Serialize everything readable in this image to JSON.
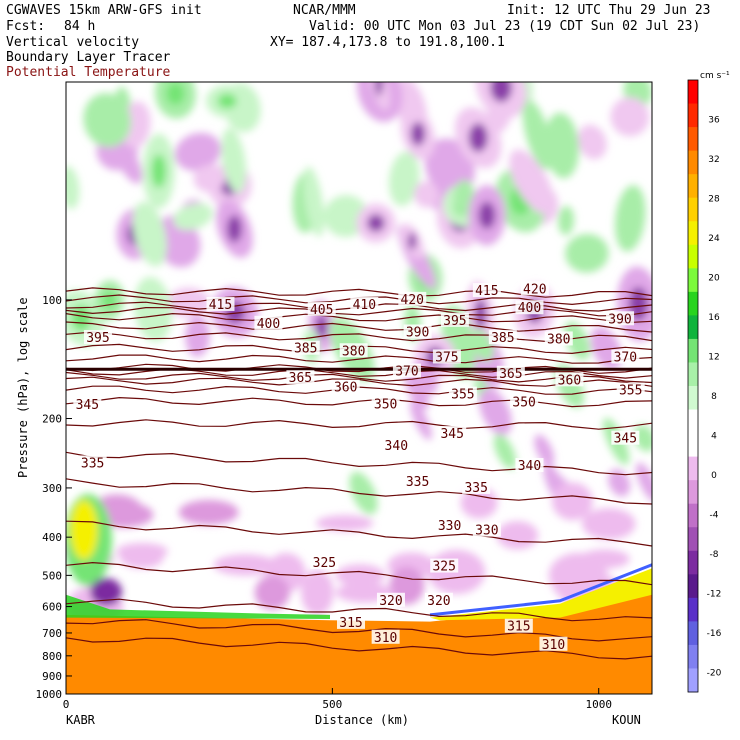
{
  "header": {
    "model": "CGWAVES 15km ARW-GFS init",
    "center": "NCAR/MMM",
    "init": "Init: 12 UTC Thu 29 Jun 23",
    "fcst_label": "Fcst:",
    "fcst_value": "84 h",
    "valid": "Valid: 00 UTC Mon 03 Jul 23 (19 CDT Sun 02 Jul 23)",
    "field1": "Vertical velocity",
    "field2": "Boundary Layer Tracer",
    "field3": "Potential Temperature",
    "xy": "XY= 187.4,173.8 to 191.8,100.1"
  },
  "colors": {
    "contour": "#6b0a0a",
    "field3_text": "#8a1414"
  },
  "chart_data": {
    "type": "heatmap",
    "title": "Vertical velocity",
    "xlabel": "Distance (km)",
    "ylabel": "Pressure (hPa), log scale",
    "xlim": [
      0,
      1100
    ],
    "ylim_hPa": [
      1000,
      28
    ],
    "y_scale": "log",
    "x_ticks": [
      "0",
      "500",
      "1000"
    ],
    "x_tick_values": [
      0,
      500,
      1000
    ],
    "x_end_labels": {
      "left": "KABR",
      "right": "KOUN"
    },
    "y_ticks": [
      "100",
      "200",
      "300",
      "400",
      "500",
      "600",
      "700",
      "800",
      "900",
      "1000"
    ],
    "y_tick_values": [
      100,
      200,
      300,
      400,
      500,
      600,
      700,
      800,
      900,
      1000
    ],
    "colorbar": {
      "unit": "cm s⁻¹",
      "labels": [
        "36",
        "32",
        "28",
        "24",
        "20",
        "16",
        "12",
        "8",
        "4",
        "0",
        "-4",
        "-8",
        "-12",
        "-16",
        "-20"
      ],
      "label_values": [
        36,
        32,
        28,
        24,
        20,
        16,
        12,
        8,
        4,
        0,
        -4,
        -8,
        -12,
        -16,
        -20
      ],
      "colors": [
        "#ff0000",
        "#ff2a00",
        "#ff5a00",
        "#ff8a00",
        "#ffb000",
        "#ffd000",
        "#f5f000",
        "#c8ff00",
        "#7cfa3c",
        "#28d41e",
        "#10b43c",
        "#74e474",
        "#a8f0a8",
        "#d0fad0",
        "#ffffff",
        "#ffffff",
        "#eebbee",
        "#dd99dd",
        "#c070c8",
        "#a050b4",
        "#7c2ca0",
        "#5a1a8c",
        "#5a30c8",
        "#6060e0",
        "#8080f0",
        "#a0a0ff"
      ]
    },
    "theta_contours": {
      "name": "Potential Temperature",
      "levels_labeled": [
        310,
        315,
        320,
        325,
        330,
        335,
        340,
        345,
        350,
        355,
        360,
        365,
        370,
        375,
        380,
        385,
        390,
        395,
        400,
        405,
        410,
        415,
        420
      ],
      "labels": [
        {
          "text": "420",
          "x": 650,
          "p": 100
        },
        {
          "text": "420",
          "x": 880,
          "p": 94
        },
        {
          "text": "415",
          "x": 790,
          "p": 95
        },
        {
          "text": "415",
          "x": 290,
          "p": 103
        },
        {
          "text": "410",
          "x": 560,
          "p": 103
        },
        {
          "text": "405",
          "x": 480,
          "p": 106
        },
        {
          "text": "400",
          "x": 380,
          "p": 115
        },
        {
          "text": "400",
          "x": 870,
          "p": 105
        },
        {
          "text": "395",
          "x": 60,
          "p": 125
        },
        {
          "text": "395",
          "x": 730,
          "p": 113
        },
        {
          "text": "390",
          "x": 660,
          "p": 121
        },
        {
          "text": "390",
          "x": 1040,
          "p": 112
        },
        {
          "text": "385",
          "x": 450,
          "p": 133
        },
        {
          "text": "385",
          "x": 820,
          "p": 125
        },
        {
          "text": "380",
          "x": 540,
          "p": 135
        },
        {
          "text": "380",
          "x": 925,
          "p": 126
        },
        {
          "text": "375",
          "x": 715,
          "p": 140
        },
        {
          "text": "370",
          "x": 640,
          "p": 152
        },
        {
          "text": "370",
          "x": 1050,
          "p": 140
        },
        {
          "text": "365",
          "x": 440,
          "p": 158
        },
        {
          "text": "365",
          "x": 835,
          "p": 154
        },
        {
          "text": "360",
          "x": 525,
          "p": 167
        },
        {
          "text": "360",
          "x": 945,
          "p": 160
        },
        {
          "text": "355",
          "x": 745,
          "p": 174
        },
        {
          "text": "355",
          "x": 1060,
          "p": 170
        },
        {
          "text": "350",
          "x": 600,
          "p": 184
        },
        {
          "text": "350",
          "x": 860,
          "p": 182
        },
        {
          "text": "345",
          "x": 40,
          "p": 185
        },
        {
          "text": "345",
          "x": 725,
          "p": 219
        },
        {
          "text": "345",
          "x": 1050,
          "p": 225
        },
        {
          "text": "340",
          "x": 620,
          "p": 235
        },
        {
          "text": "340",
          "x": 870,
          "p": 264
        },
        {
          "text": "335",
          "x": 50,
          "p": 260
        },
        {
          "text": "335",
          "x": 660,
          "p": 290
        },
        {
          "text": "335",
          "x": 770,
          "p": 300
        },
        {
          "text": "330",
          "x": 720,
          "p": 375
        },
        {
          "text": "330",
          "x": 790,
          "p": 385
        },
        {
          "text": "325",
          "x": 485,
          "p": 465
        },
        {
          "text": "325",
          "x": 710,
          "p": 475
        },
        {
          "text": "320",
          "x": 610,
          "p": 580
        },
        {
          "text": "320",
          "x": 700,
          "p": 580
        },
        {
          "text": "315",
          "x": 535,
          "p": 660
        },
        {
          "text": "315",
          "x": 850,
          "p": 675
        },
        {
          "text": "310",
          "x": 600,
          "p": 720
        },
        {
          "text": "310",
          "x": 915,
          "p": 750
        }
      ]
    }
  }
}
